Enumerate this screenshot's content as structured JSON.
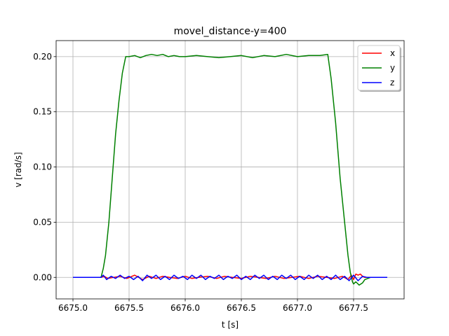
{
  "chart_data": {
    "type": "line",
    "title": "movel_distance-y=400",
    "xlabel": "t [s]",
    "ylabel": "v [rad/s]",
    "xlim": [
      6674.85,
      6677.95
    ],
    "ylim": [
      -0.0195,
      0.2145
    ],
    "x_ticks": [
      6675.0,
      6675.5,
      6676.0,
      6676.5,
      6677.0,
      6677.5
    ],
    "x_tick_labels": [
      "6675.0",
      "6675.5",
      "6676.0",
      "6676.5",
      "6677.0",
      "6677.5"
    ],
    "y_ticks": [
      0.0,
      0.05,
      0.1,
      0.15,
      0.2
    ],
    "y_tick_labels": [
      "0.00",
      "0.05",
      "0.10",
      "0.15",
      "0.20"
    ],
    "grid": true,
    "legend_position": "top-right",
    "series": [
      {
        "name": "x",
        "color": "#ff0000",
        "x": [
          6675.0,
          6675.25,
          6675.28,
          6675.31,
          6675.36,
          6675.42,
          6675.48,
          6675.55,
          6675.62,
          6675.68,
          6675.74,
          6675.8,
          6675.86,
          6675.93,
          6676.0,
          6676.06,
          6676.12,
          6676.2,
          6676.28,
          6676.35,
          6676.42,
          6676.5,
          6676.58,
          6676.65,
          6676.72,
          6676.8,
          6676.88,
          6676.95,
          6677.02,
          6677.1,
          6677.18,
          6677.26,
          6677.33,
          6677.4,
          6677.45,
          6677.48,
          6677.5,
          6677.52,
          6677.54,
          6677.56,
          6677.58,
          6677.6,
          6677.65,
          6677.8
        ],
        "values": [
          0.0,
          0.0,
          0.001,
          -0.001,
          0.0,
          0.001,
          -0.001,
          0.002,
          -0.002,
          0.001,
          -0.001,
          0.001,
          0.0,
          -0.001,
          0.001,
          -0.001,
          0.0,
          0.001,
          -0.001,
          0.001,
          0.0,
          -0.001,
          0.001,
          0.0,
          -0.001,
          0.001,
          -0.001,
          0.0,
          0.001,
          -0.001,
          0.001,
          0.0,
          -0.001,
          0.001,
          -0.002,
          0.002,
          -0.002,
          0.003,
          0.002,
          0.003,
          0.001,
          0.0,
          0.0,
          0.0
        ]
      },
      {
        "name": "y",
        "color": "#008000",
        "x": [
          6675.0,
          6675.25,
          6675.27,
          6675.29,
          6675.32,
          6675.35,
          6675.38,
          6675.41,
          6675.44,
          6675.47,
          6675.5,
          6675.55,
          6675.6,
          6675.65,
          6675.7,
          6675.75,
          6675.8,
          6675.85,
          6675.9,
          6675.95,
          6676.0,
          6676.1,
          6676.2,
          6676.3,
          6676.4,
          6676.5,
          6676.6,
          6676.7,
          6676.8,
          6676.9,
          6677.0,
          6677.1,
          6677.2,
          6677.27,
          6677.3,
          6677.34,
          6677.38,
          6677.42,
          6677.45,
          6677.47,
          6677.49,
          6677.5,
          6677.52,
          6677.55,
          6677.58,
          6677.6,
          6677.65,
          6677.8
        ],
        "values": [
          0.0,
          0.0,
          0.008,
          0.02,
          0.05,
          0.09,
          0.13,
          0.16,
          0.185,
          0.2,
          0.2,
          0.201,
          0.199,
          0.201,
          0.202,
          0.201,
          0.202,
          0.2,
          0.201,
          0.2,
          0.2,
          0.201,
          0.2,
          0.199,
          0.2,
          0.201,
          0.199,
          0.201,
          0.2,
          0.202,
          0.2,
          0.201,
          0.201,
          0.202,
          0.18,
          0.14,
          0.09,
          0.05,
          0.02,
          0.005,
          -0.004,
          -0.006,
          -0.004,
          -0.007,
          -0.005,
          -0.002,
          0.0,
          0.0
        ]
      },
      {
        "name": "z",
        "color": "#0000ff",
        "x": [
          6675.0,
          6675.25,
          6675.27,
          6675.3,
          6675.34,
          6675.38,
          6675.42,
          6675.46,
          6675.5,
          6675.54,
          6675.58,
          6675.62,
          6675.66,
          6675.7,
          6675.74,
          6675.78,
          6675.82,
          6675.86,
          6675.9,
          6675.94,
          6675.98,
          6676.02,
          6676.06,
          6676.1,
          6676.14,
          6676.18,
          6676.22,
          6676.26,
          6676.3,
          6676.34,
          6676.38,
          6676.42,
          6676.46,
          6676.5,
          6676.54,
          6676.58,
          6676.62,
          6676.66,
          6676.7,
          6676.74,
          6676.78,
          6676.82,
          6676.86,
          6676.9,
          6676.94,
          6676.98,
          6677.02,
          6677.06,
          6677.1,
          6677.14,
          6677.18,
          6677.22,
          6677.26,
          6677.3,
          6677.34,
          6677.38,
          6677.42,
          6677.46,
          6677.5,
          6677.54,
          6677.58,
          6677.62,
          6677.8
        ],
        "values": [
          0.0,
          0.0,
          0.002,
          -0.002,
          0.001,
          -0.001,
          0.002,
          -0.001,
          0.001,
          -0.002,
          0.001,
          -0.003,
          0.002,
          -0.001,
          0.002,
          -0.002,
          0.001,
          -0.002,
          0.002,
          -0.001,
          0.001,
          -0.002,
          0.002,
          -0.001,
          0.002,
          -0.002,
          0.001,
          -0.001,
          0.002,
          -0.002,
          0.001,
          -0.001,
          0.002,
          -0.002,
          0.001,
          -0.002,
          0.002,
          -0.001,
          0.002,
          -0.002,
          0.001,
          -0.002,
          0.002,
          -0.001,
          0.002,
          -0.002,
          0.001,
          -0.002,
          0.002,
          -0.001,
          0.002,
          -0.002,
          0.001,
          -0.002,
          0.002,
          -0.002,
          0.001,
          -0.003,
          0.002,
          -0.003,
          0.001,
          0.0,
          0.0
        ]
      }
    ]
  }
}
